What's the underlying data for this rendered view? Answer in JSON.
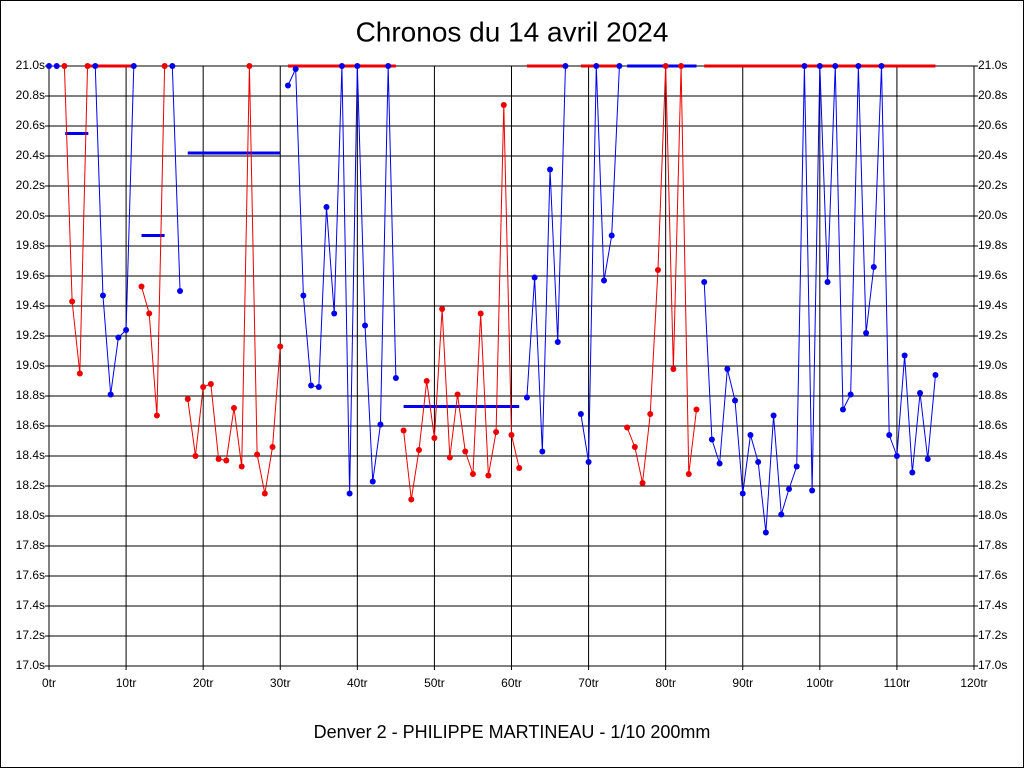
{
  "chart_data": {
    "type": "line",
    "title": "Chronos du 14 avril 2024",
    "subtitle": "Denver 2 - PHILIPPE MARTINEAU - 1/10 200mm",
    "x": [
      0,
      1,
      2,
      3,
      4,
      5,
      6,
      7,
      8,
      9,
      10,
      11,
      12,
      13,
      14,
      15,
      16,
      17,
      18,
      19,
      20,
      21,
      22,
      23,
      24,
      25,
      26,
      27,
      28,
      29,
      30,
      31,
      32,
      33,
      34,
      35,
      36,
      37,
      38,
      39,
      40,
      41,
      42,
      43,
      44,
      45,
      46,
      47,
      48,
      49,
      50,
      51,
      52,
      53,
      54,
      55,
      56,
      57,
      58,
      59,
      60,
      61,
      62,
      63,
      64,
      65,
      66,
      67,
      68,
      69,
      70,
      71,
      72,
      73,
      74,
      75,
      76,
      77,
      78,
      79,
      80,
      81,
      82,
      83,
      84,
      85,
      86,
      87,
      88,
      89,
      90,
      91,
      92,
      93,
      94,
      95,
      96,
      97,
      98,
      99,
      100,
      101,
      102,
      103,
      104,
      105,
      106,
      107,
      108,
      109,
      110,
      111,
      112,
      113,
      114,
      115
    ],
    "series": [
      {
        "name": "blue",
        "color": "#0000ee",
        "values": [
          21.0,
          21.0,
          null,
          null,
          null,
          null,
          21.0,
          19.47,
          18.81,
          19.19,
          19.24,
          21.0,
          null,
          null,
          null,
          null,
          21.0,
          19.5,
          null,
          null,
          null,
          null,
          null,
          null,
          null,
          null,
          null,
          null,
          null,
          null,
          null,
          20.87,
          20.98,
          19.47,
          18.87,
          18.86,
          20.06,
          19.35,
          21.0,
          18.15,
          21.0,
          19.27,
          18.23,
          18.61,
          21.0,
          18.92,
          null,
          null,
          null,
          null,
          null,
          null,
          null,
          null,
          null,
          null,
          null,
          null,
          null,
          null,
          null,
          null,
          18.79,
          19.59,
          18.43,
          20.31,
          19.16,
          21.0,
          null,
          18.68,
          18.36,
          21.0,
          19.57,
          19.87,
          21.0,
          null,
          null,
          null,
          null,
          null,
          null,
          null,
          null,
          null,
          null,
          19.56,
          18.51,
          18.35,
          18.98,
          18.77,
          18.15,
          18.54,
          18.36,
          17.89,
          18.67,
          18.01,
          18.18,
          18.33,
          21.0,
          18.17,
          21.0,
          19.56,
          21.0,
          18.71,
          18.81,
          21.0,
          19.22,
          19.66,
          21.0,
          18.54,
          18.4,
          19.07,
          18.29,
          18.82,
          18.38,
          18.94
        ]
      },
      {
        "name": "red",
        "color": "#ee0000",
        "values": [
          null,
          null,
          21.0,
          19.43,
          18.95,
          21.0,
          null,
          null,
          null,
          null,
          null,
          null,
          19.53,
          19.35,
          18.67,
          21.0,
          null,
          null,
          18.78,
          18.4,
          18.86,
          18.88,
          18.38,
          18.37,
          18.72,
          18.33,
          21.0,
          18.41,
          18.15,
          18.46,
          19.13,
          null,
          null,
          null,
          null,
          null,
          null,
          null,
          null,
          null,
          null,
          null,
          null,
          null,
          null,
          null,
          18.57,
          18.11,
          18.44,
          18.9,
          18.52,
          19.38,
          18.39,
          18.81,
          18.43,
          18.28,
          19.35,
          18.27,
          18.56,
          20.74,
          18.54,
          18.32,
          null,
          null,
          null,
          null,
          null,
          null,
          null,
          null,
          null,
          null,
          null,
          null,
          null,
          18.59,
          18.46,
          18.22,
          18.68,
          19.64,
          21.0,
          18.98,
          21.0,
          18.28,
          18.71,
          null,
          null,
          null,
          null,
          null,
          null,
          null,
          null,
          null,
          null,
          null,
          null,
          null,
          null,
          null,
          null,
          null,
          null,
          null,
          null,
          null,
          null,
          null,
          null,
          null,
          null,
          null,
          null,
          null,
          null,
          null
        ]
      }
    ],
    "segments": [
      {
        "color": "#ee0000",
        "x": [
          5,
          11
        ],
        "y": 21.0
      },
      {
        "color": "#ee0000",
        "x": [
          31,
          45
        ],
        "y": 21.0
      },
      {
        "color": "#ee0000",
        "x": [
          62,
          67
        ],
        "y": 21.0
      },
      {
        "color": "#ee0000",
        "x": [
          69,
          74
        ],
        "y": 21.0
      },
      {
        "color": "#ee0000",
        "x": [
          85,
          115
        ],
        "y": 21.0
      },
      {
        "color": "#0000ee",
        "x": [
          75,
          84
        ],
        "y": 21.0
      },
      {
        "color": "#0000ee",
        "x": [
          2.1,
          5.1
        ],
        "y": 20.55
      },
      {
        "color": "#0000ee",
        "x": [
          12,
          15
        ],
        "y": 19.87
      },
      {
        "color": "#0000ee",
        "x": [
          18,
          30
        ],
        "y": 20.42
      },
      {
        "color": "#0000ee",
        "x": [
          46,
          61
        ],
        "y": 18.73
      }
    ],
    "xlim": [
      0,
      120
    ],
    "xticks": [
      {
        "value": 0,
        "label": "0tr"
      },
      {
        "value": 10,
        "label": "10tr"
      },
      {
        "value": 20,
        "label": "20tr"
      },
      {
        "value": 30,
        "label": "30tr"
      },
      {
        "value": 40,
        "label": "40tr"
      },
      {
        "value": 50,
        "label": "50tr"
      },
      {
        "value": 60,
        "label": "60tr"
      },
      {
        "value": 70,
        "label": "70tr"
      },
      {
        "value": 80,
        "label": "80tr"
      },
      {
        "value": 90,
        "label": "90tr"
      },
      {
        "value": 100,
        "label": "100tr"
      },
      {
        "value": 110,
        "label": "110tr"
      },
      {
        "value": 120,
        "label": "120tr"
      }
    ],
    "ylim": [
      17.0,
      21.0
    ],
    "yticks": [
      {
        "value": 17.0,
        "label": "17.0s"
      },
      {
        "value": 17.2,
        "label": "17.2s"
      },
      {
        "value": 17.4,
        "label": "17.4s"
      },
      {
        "value": 17.6,
        "label": "17.6s"
      },
      {
        "value": 17.8,
        "label": "17.8s"
      },
      {
        "value": 18.0,
        "label": "18.0s"
      },
      {
        "value": 18.2,
        "label": "18.2s"
      },
      {
        "value": 18.4,
        "label": "18.4s"
      },
      {
        "value": 18.6,
        "label": "18.6s"
      },
      {
        "value": 18.8,
        "label": "18.8s"
      },
      {
        "value": 19.0,
        "label": "19.0s"
      },
      {
        "value": 19.2,
        "label": "19.2s"
      },
      {
        "value": 19.4,
        "label": "19.4s"
      },
      {
        "value": 19.6,
        "label": "19.6s"
      },
      {
        "value": 19.8,
        "label": "19.8s"
      },
      {
        "value": 20.0,
        "label": "20.0s"
      },
      {
        "value": 20.2,
        "label": "20.2s"
      },
      {
        "value": 20.4,
        "label": "20.4s"
      },
      {
        "value": 20.6,
        "label": "20.6s"
      },
      {
        "value": 20.8,
        "label": "20.8s"
      },
      {
        "value": 21.0,
        "label": "21.0s"
      }
    ],
    "grid": true
  }
}
